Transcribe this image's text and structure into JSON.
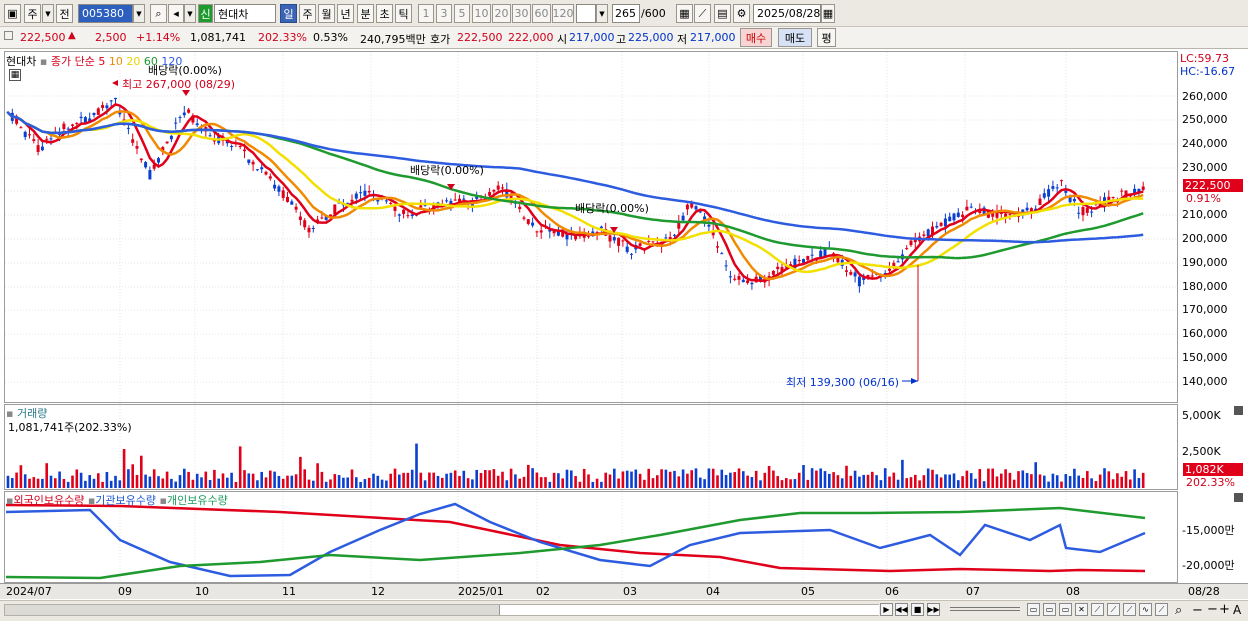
{
  "toolbar": {
    "market_tab_1": "주",
    "market_tab_2": "전",
    "stock_code": "005380",
    "new_label": "신",
    "stock_name": "현대차",
    "periods": [
      "일",
      "주",
      "월",
      "년",
      "분",
      "초",
      "틱"
    ],
    "active_period": "일",
    "intervals": [
      "1",
      "3",
      "5",
      "10",
      "20",
      "30",
      "60",
      "120"
    ],
    "count_value": "265",
    "count_max": "/600",
    "date": "2025/08/28"
  },
  "quote": {
    "price": "222,500",
    "change": "2,500",
    "change_pct": "+1.14%",
    "volume": "1,081,741",
    "volume_ratio": "202.33%",
    "turnover_rate": "0.53%",
    "amount": "240,795백만",
    "bid_label": "호가",
    "ask": "222,500",
    "bid": "222,000",
    "open_label": "시",
    "open": "217,000",
    "high_label": "고",
    "high": "225,000",
    "low_label": "저",
    "low": "217,000",
    "buy_btn": "매수",
    "sell_btn": "매도",
    "eval_btn": "평"
  },
  "price_panel": {
    "stock": "현대차",
    "ma_label": "종가 단순",
    "ma_periods": [
      "5",
      "10",
      "20",
      "60",
      "120"
    ],
    "lc": "LC:59.73",
    "hc": "HC:-16.67",
    "y_ticks": [
      "260,000",
      "250,000",
      "240,000",
      "230,000",
      "220,000",
      "210,000",
      "200,000",
      "190,000",
      "180,000",
      "170,000",
      "160,000",
      "150,000",
      "140,000"
    ],
    "current_tag": "222,500",
    "current_pct": "0.91%",
    "high_annotation": "최고 267,000 (08/29)",
    "low_annotation": "최저 139,300 (06/16)",
    "dividend_1": "배당락(0.00%)",
    "dividend_2": "배당락(0.00%)",
    "dividend_3": "배당락(0.00%)"
  },
  "volume_panel": {
    "title": "거래량",
    "value": "1,081,741주(202.33%)",
    "y_ticks": [
      "5,000K",
      "2,500K"
    ],
    "current_tag": "1,082K",
    "current_pct": "202.33%"
  },
  "holding_panel": {
    "foreign": "외국인보유수량",
    "institution": "기관보유수량",
    "individual": "개인보유수량",
    "y_ticks": [
      "-15,000만",
      "-20,000만"
    ]
  },
  "x_axis": [
    "2024/07",
    "09",
    "10",
    "11",
    "12",
    "2025/01",
    "02",
    "03",
    "04",
    "05",
    "06",
    "07",
    "08",
    "08/28"
  ],
  "colors": {
    "up": "#e0001a",
    "down": "#0a3fd0",
    "ma5": "#e0001a",
    "ma10": "#f08a00",
    "ma20": "#f2e000",
    "ma60": "#1e9a2e",
    "ma120": "#2d5ce0"
  }
}
